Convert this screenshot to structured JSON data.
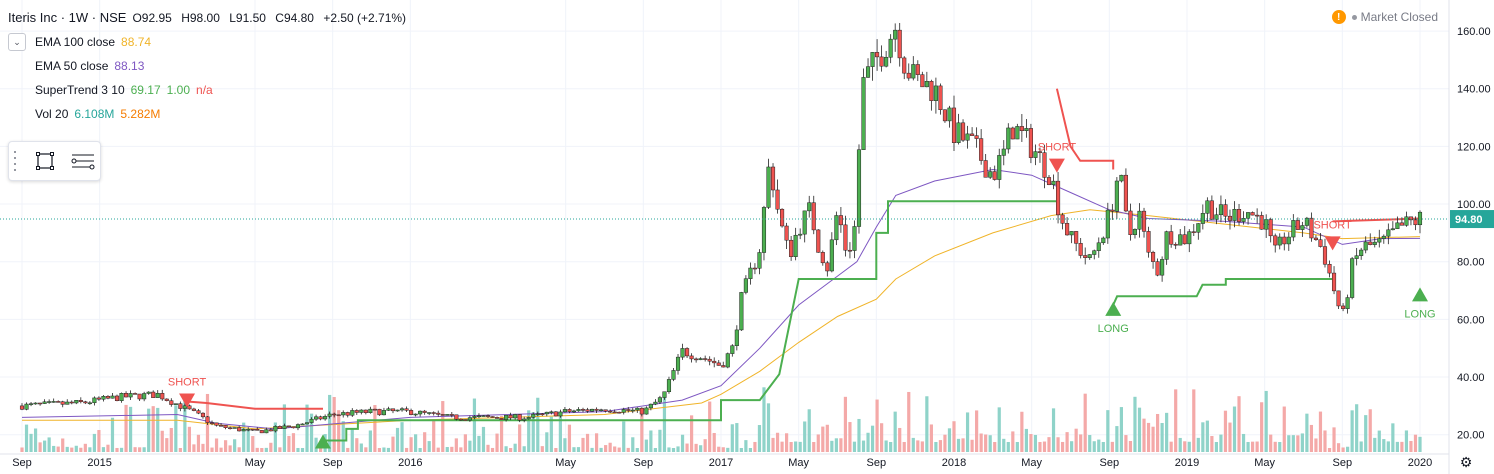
{
  "header": {
    "symbol": "Iteris Inc · 1W · NSE",
    "open": "O92.95",
    "high": "H98.00",
    "low": "L91.50",
    "close": "C94.80",
    "change": "+2.50 (+2.71%)"
  },
  "indicators": [
    {
      "name": "EMA 100 close",
      "values": [
        "88.74"
      ],
      "colors": [
        "#f0b429"
      ]
    },
    {
      "name": "EMA 50 close",
      "values": [
        "88.13"
      ],
      "colors": [
        "#7e57c2"
      ]
    },
    {
      "name": "SuperTrend 3 10",
      "values": [
        "69.17",
        "1.00",
        "n/a"
      ],
      "colors": [
        "#4caf50",
        "#4caf50",
        "#ef5350"
      ]
    },
    {
      "name": "Vol 20",
      "values": [
        "6.108M",
        "5.282M"
      ],
      "colors": [
        "#26a69a",
        "#f57c00"
      ]
    }
  ],
  "status": {
    "text": "Market Closed",
    "warning_icon": "!"
  },
  "colors": {
    "up": "#4caf50",
    "down": "#ef5350",
    "ema100": "#f0b429",
    "ema50": "#7e57c2",
    "st_up": "#4caf50",
    "st_down": "#ef5350",
    "vol_up": "#8fd3c9",
    "vol_down": "#f4a9a8"
  },
  "chart_data": {
    "type": "candlestick",
    "price_label": "94.80",
    "y_ticks": [
      "20.00",
      "40.00",
      "60.00",
      "80.00",
      "100.00",
      "120.00",
      "140.00",
      "160.00"
    ],
    "ylim": [
      14,
      168
    ],
    "x_ticks": [
      {
        "label": "Sep",
        "t": 0.0
      },
      {
        "label": "2015",
        "t": 4.0
      },
      {
        "label": "May",
        "t": 12.0
      },
      {
        "label": "Sep",
        "t": 16.0
      },
      {
        "label": "2016",
        "t": 20.0
      },
      {
        "label": "May",
        "t": 28.0
      },
      {
        "label": "Sep",
        "t": 32.0
      },
      {
        "label": "2017",
        "t": 36.0
      },
      {
        "label": "May",
        "t": 40.0
      },
      {
        "label": "Sep",
        "t": 44.0
      },
      {
        "label": "2018",
        "t": 48.0
      },
      {
        "label": "May",
        "t": 52.0
      },
      {
        "label": "Sep",
        "t": 56.0
      },
      {
        "label": "2019",
        "t": 60.0
      },
      {
        "label": "May",
        "t": 64.0
      },
      {
        "label": "Sep",
        "t": 68.0
      },
      {
        "label": "2020",
        "t": 72.0
      }
    ],
    "price_path": [
      [
        0,
        30
      ],
      [
        3,
        31
      ],
      [
        5,
        33
      ],
      [
        7,
        34
      ],
      [
        9,
        27
      ],
      [
        10,
        23
      ],
      [
        12,
        21
      ],
      [
        14,
        23
      ],
      [
        16,
        27
      ],
      [
        18,
        28
      ],
      [
        20,
        28
      ],
      [
        22,
        26
      ],
      [
        24,
        26
      ],
      [
        26,
        26
      ],
      [
        28,
        28
      ],
      [
        30,
        29
      ],
      [
        32,
        28
      ],
      [
        33,
        33
      ],
      [
        34,
        49
      ],
      [
        35,
        47
      ],
      [
        36,
        44
      ],
      [
        36.6,
        50
      ],
      [
        37,
        66
      ],
      [
        38,
        85
      ],
      [
        38.5,
        115
      ],
      [
        39,
        95
      ],
      [
        39.5,
        82
      ],
      [
        40,
        92
      ],
      [
        40.6,
        98
      ],
      [
        41,
        86
      ],
      [
        41.5,
        78
      ],
      [
        42,
        98
      ],
      [
        42.5,
        82
      ],
      [
        43,
        95
      ],
      [
        43.2,
        140
      ],
      [
        44,
        150
      ],
      [
        45,
        162
      ],
      [
        45.5,
        148
      ],
      [
        46,
        143
      ],
      [
        47,
        140
      ],
      [
        48,
        125
      ],
      [
        49,
        120
      ],
      [
        50,
        110
      ],
      [
        50.6,
        118
      ],
      [
        51,
        127
      ],
      [
        52,
        120
      ],
      [
        53,
        110
      ],
      [
        53.5,
        96
      ],
      [
        54,
        88
      ],
      [
        55,
        80
      ],
      [
        56,
        96
      ],
      [
        56.5,
        112
      ],
      [
        57,
        88
      ],
      [
        57.5,
        98
      ],
      [
        58,
        82
      ],
      [
        58.5,
        77
      ],
      [
        59,
        90
      ],
      [
        60,
        88
      ],
      [
        61,
        100
      ],
      [
        62,
        95
      ],
      [
        63,
        98
      ],
      [
        64,
        94
      ],
      [
        64.5,
        82
      ],
      [
        65,
        88
      ],
      [
        66,
        94
      ],
      [
        67,
        84
      ],
      [
        67.5,
        72
      ],
      [
        68,
        60
      ],
      [
        68.5,
        78
      ],
      [
        69,
        85
      ],
      [
        70,
        86
      ],
      [
        71,
        92
      ],
      [
        72,
        94.8
      ]
    ],
    "ema100_path": [
      [
        0,
        25
      ],
      [
        8,
        25
      ],
      [
        12,
        22
      ],
      [
        20,
        25
      ],
      [
        30,
        27
      ],
      [
        35,
        31
      ],
      [
        36,
        34
      ],
      [
        38,
        42
      ],
      [
        40,
        52
      ],
      [
        42,
        61
      ],
      [
        44,
        67
      ],
      [
        45,
        74
      ],
      [
        47,
        82
      ],
      [
        50,
        90
      ],
      [
        53,
        96
      ],
      [
        55,
        98
      ],
      [
        58,
        96
      ],
      [
        62,
        93
      ],
      [
        66,
        90
      ],
      [
        68,
        88
      ],
      [
        72,
        88.7
      ]
    ],
    "ema50_path": [
      [
        0,
        26
      ],
      [
        8,
        27
      ],
      [
        10,
        24
      ],
      [
        13,
        22
      ],
      [
        20,
        26
      ],
      [
        30,
        28
      ],
      [
        34,
        32
      ],
      [
        36,
        37
      ],
      [
        38,
        50
      ],
      [
        40,
        65
      ],
      [
        42,
        75
      ],
      [
        43,
        80
      ],
      [
        44,
        92
      ],
      [
        45,
        103
      ],
      [
        47,
        108
      ],
      [
        50,
        112
      ],
      [
        52,
        110
      ],
      [
        54,
        104
      ],
      [
        56,
        98
      ],
      [
        58,
        95
      ],
      [
        62,
        94
      ],
      [
        66,
        92
      ],
      [
        68,
        86
      ],
      [
        70,
        88
      ],
      [
        72,
        88.1
      ]
    ],
    "supertrend_segments": [
      {
        "dir": "down",
        "points": [
          [
            8.5,
            31.5
          ],
          [
            9.5,
            31
          ],
          [
            12,
            29
          ],
          [
            15.5,
            29
          ]
        ]
      },
      {
        "dir": "up",
        "points": [
          [
            15.5,
            18
          ],
          [
            16.7,
            18
          ],
          [
            16.7,
            22
          ],
          [
            17.3,
            22
          ],
          [
            17.3,
            25
          ],
          [
            36,
            25
          ],
          [
            36,
            32
          ],
          [
            38,
            32
          ],
          [
            39,
            41
          ],
          [
            40,
            74
          ],
          [
            41,
            74
          ],
          [
            44,
            74
          ],
          [
            44,
            90
          ],
          [
            44.6,
            90
          ],
          [
            44.6,
            101
          ],
          [
            53.3,
            101
          ]
        ]
      },
      {
        "dir": "down",
        "points": [
          [
            53.3,
            140
          ],
          [
            54,
            120
          ],
          [
            54.5,
            115
          ],
          [
            56.2,
            115
          ],
          [
            56.2,
            112
          ]
        ]
      },
      {
        "dir": "up",
        "points": [
          [
            56.2,
            65
          ],
          [
            56.4,
            68
          ],
          [
            60.5,
            68
          ],
          [
            60.8,
            72
          ],
          [
            62,
            72
          ],
          [
            62,
            74
          ],
          [
            67.5,
            74
          ]
        ]
      },
      {
        "dir": "down",
        "points": [
          [
            67.5,
            94
          ],
          [
            72,
            95
          ]
        ]
      }
    ],
    "signals": [
      {
        "kind": "short",
        "label": "SHORT",
        "t": 8.5,
        "price": 31.5
      },
      {
        "kind": "long",
        "label": "",
        "t": 15.5,
        "price": 18
      },
      {
        "kind": "short",
        "label": "SHORT",
        "t": 53.3,
        "price": 113
      },
      {
        "kind": "long",
        "label": "LONG",
        "t": 56.2,
        "price": 64
      },
      {
        "kind": "short",
        "label": "SHORT",
        "t": 67.5,
        "price": 86
      },
      {
        "kind": "long",
        "label": "LONG",
        "t": 72.0,
        "price": 69
      }
    ]
  }
}
